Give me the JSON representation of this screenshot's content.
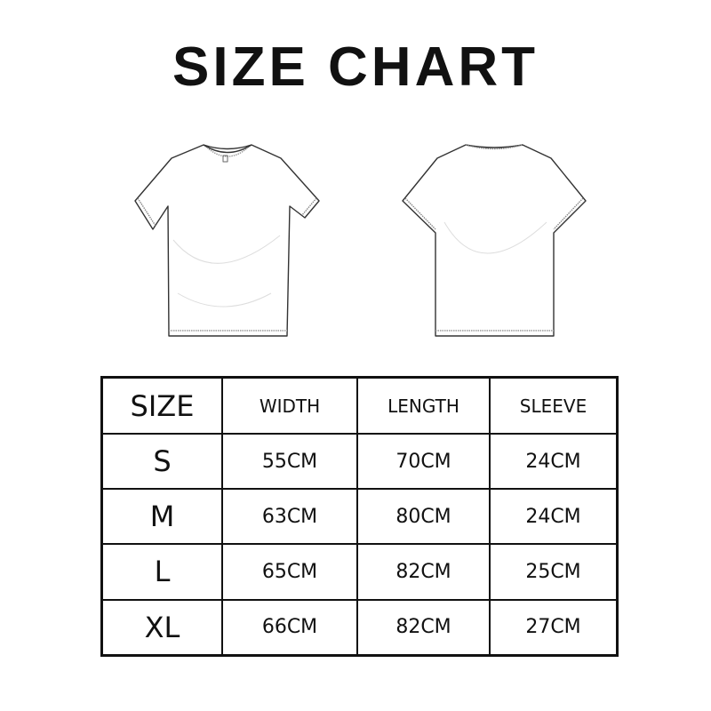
{
  "title": "SIZE CHART",
  "illustrations": [
    {
      "name": "t-shirt-front",
      "view": "front"
    },
    {
      "name": "t-shirt-back",
      "view": "back"
    }
  ],
  "table": {
    "headers": [
      "SIZE",
      "WIDTH",
      "LENGTH",
      "SLEEVE"
    ],
    "rows": [
      [
        "S",
        "55CM",
        "70CM",
        "24CM"
      ],
      [
        "M",
        "63CM",
        "80CM",
        "24CM"
      ],
      [
        "L",
        "65CM",
        "82CM",
        "25CM"
      ],
      [
        "XL",
        "66CM",
        "82CM",
        "27CM"
      ]
    ]
  }
}
